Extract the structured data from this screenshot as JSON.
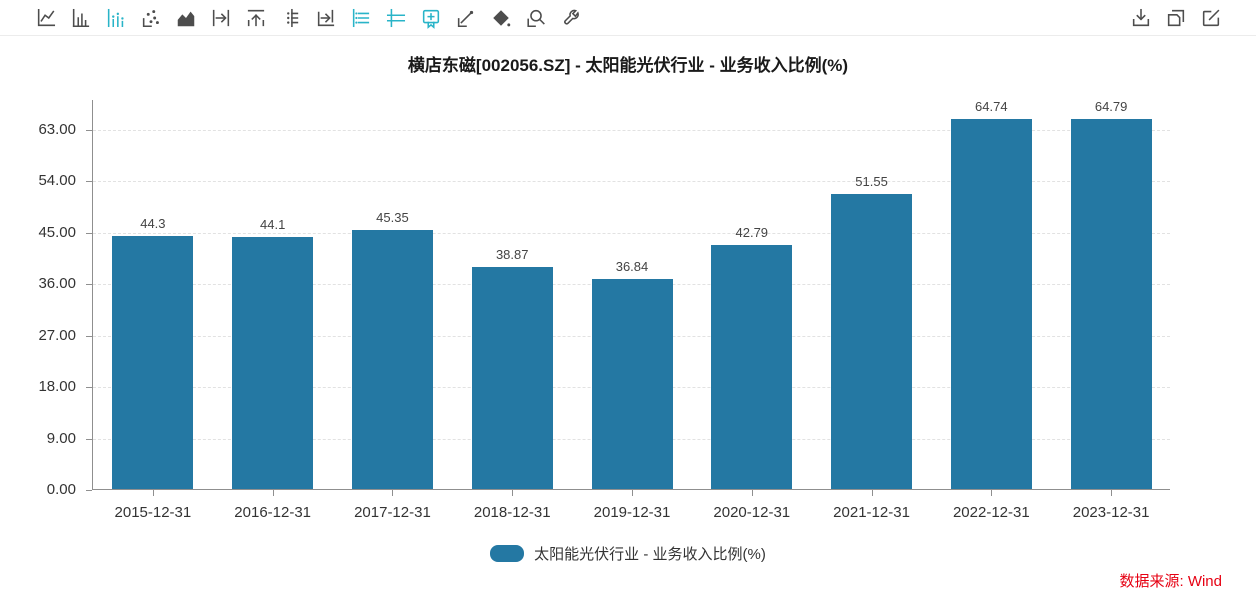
{
  "colors": {
    "bar": "#2478a3",
    "accent_active_icon": "#29b4c8",
    "icon_gray": "#4d4d4d",
    "axis_line": "#8f8f8f",
    "gridline": "#e2e2e2",
    "axis_text": "#333333",
    "value_label_text": "#444444",
    "title_text": "#1a1a1a",
    "source_red": "#e60012"
  },
  "toolbar": {
    "left_icons": [
      {
        "name": "line-chart",
        "active": false
      },
      {
        "name": "column-chart",
        "active": false
      },
      {
        "name": "histogram",
        "active": true
      },
      {
        "name": "scatter",
        "active": false
      },
      {
        "name": "area-chart",
        "active": false
      },
      {
        "name": "shift-right",
        "active": false
      },
      {
        "name": "move-top",
        "active": false
      },
      {
        "name": "axis-marks",
        "active": false
      },
      {
        "name": "step-right",
        "active": false
      },
      {
        "name": "data-list",
        "active": true
      },
      {
        "name": "axis-lines",
        "active": true
      },
      {
        "name": "bookmark-add",
        "active": true
      },
      {
        "name": "trendline",
        "active": false
      },
      {
        "name": "fill-diamond",
        "active": false
      },
      {
        "name": "magnifier",
        "active": false
      },
      {
        "name": "wrench",
        "active": false
      }
    ],
    "right_icons": [
      {
        "name": "download",
        "active": false
      },
      {
        "name": "copy",
        "active": false
      },
      {
        "name": "edit",
        "active": false
      }
    ]
  },
  "chart_data": {
    "type": "bar",
    "title": "横店东磁[002056.SZ] - 太阳能光伏行业 - 业务收入比例(%)",
    "series_name": "太阳能光伏行业 - 业务收入比例(%)",
    "categories": [
      "2015-12-31",
      "2016-12-31",
      "2017-12-31",
      "2018-12-31",
      "2019-12-31",
      "2020-12-31",
      "2021-12-31",
      "2022-12-31",
      "2023-12-31"
    ],
    "values": [
      44.3,
      44.1,
      45.35,
      38.87,
      36.84,
      42.79,
      51.55,
      64.74,
      64.79
    ],
    "value_labels": [
      "44.3",
      "44.1",
      "45.35",
      "38.87",
      "36.84",
      "42.79",
      "51.55",
      "64.74",
      "64.79"
    ],
    "xlabel": "",
    "ylabel": "",
    "ylim": [
      0,
      68.25
    ],
    "yticks": [
      0,
      9,
      18,
      27,
      36,
      45,
      54,
      63
    ],
    "ytick_labels": [
      "0.00",
      "9.00",
      "18.00",
      "27.00",
      "36.00",
      "45.00",
      "54.00",
      "63.00"
    ],
    "grid": true,
    "grid_style": "dashed",
    "legend_position": "bottom",
    "bar_color": "#2478a3"
  },
  "legend": {
    "label": "太阳能光伏行业 - 业务收入比例(%)"
  },
  "source": {
    "label": "数据来源: Wind"
  }
}
